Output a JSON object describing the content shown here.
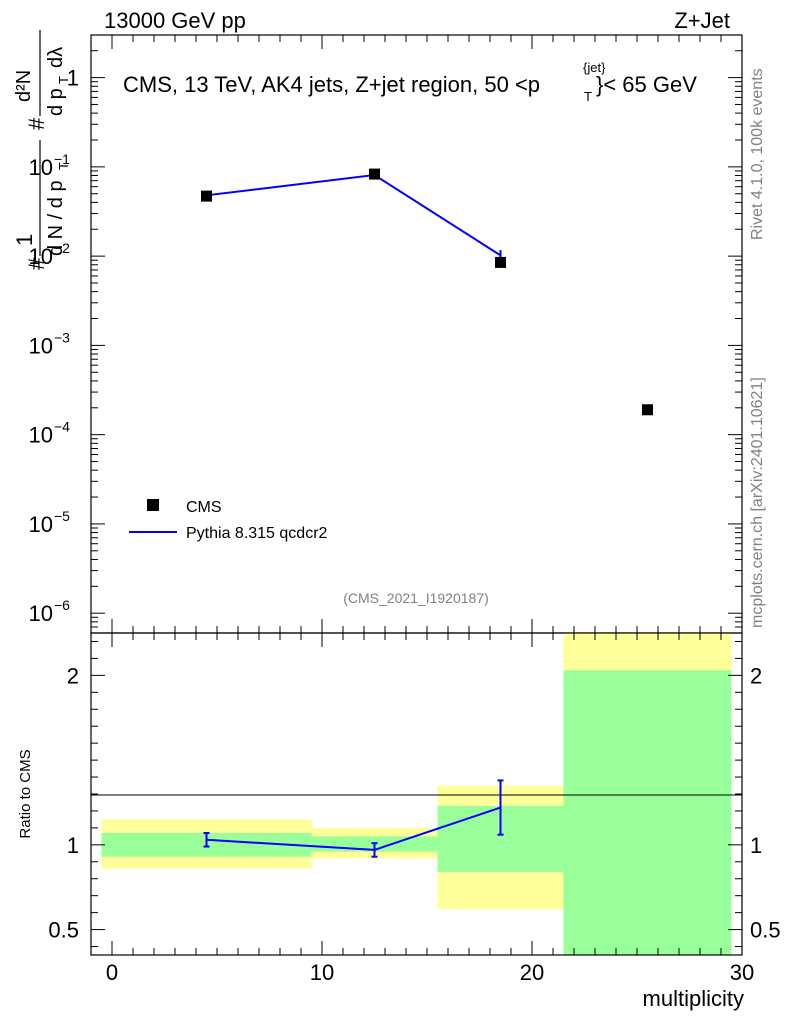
{
  "header": {
    "left": "13000 GeV pp",
    "right": "Z+Jet"
  },
  "side": {
    "rivet": "Rivet 4.1.0,  100k events",
    "mcplots": "mcplots.cern.ch [arXiv:2401.10621]"
  },
  "chart_data": [
    {
      "type": "scatter",
      "panel": "main",
      "title_parts": {
        "prefix": "CMS, 13 TeV, AK4 jets, Z+jet region, 50 <p",
        "sup": "{jet}",
        "sub": "T",
        "suffix": "}< 65 GeV"
      },
      "ylabel": "# 1 / dN / dp_T # d²N / dp_T dλ",
      "yscale": "log",
      "ylim": [
        6e-07,
        3.0
      ],
      "yticks": [
        {
          "v": 1,
          "base": "1",
          "exp": ""
        },
        {
          "v": 0.1,
          "base": "10",
          "exp": "−1"
        },
        {
          "v": 0.01,
          "base": "10",
          "exp": "−2"
        },
        {
          "v": 0.001,
          "base": "10",
          "exp": "−3"
        },
        {
          "v": 0.0001,
          "base": "10",
          "exp": "−4"
        },
        {
          "v": 1e-05,
          "base": "10",
          "exp": "−5"
        },
        {
          "v": 1e-06,
          "base": "10",
          "exp": "−6"
        }
      ],
      "xlim": [
        -1,
        30
      ],
      "legend": {
        "location": "bottom-left",
        "cms": "CMS",
        "pythia": "Pythia 8.315 qcdcr2"
      },
      "watermark": "(CMS_2021_I1920187)",
      "series": [
        {
          "name": "CMS",
          "marker": "square",
          "color": "#000000",
          "x": [
            4.5,
            12.5,
            18.5,
            25.5
          ],
          "y": [
            0.047,
            0.083,
            0.0085,
            0.00019
          ]
        },
        {
          "name": "Pythia 8.315 qcdcr2",
          "marker": "line",
          "color": "#0000ff",
          "x": [
            4.5,
            12.5,
            18.5
          ],
          "y": [
            0.048,
            0.081,
            0.0102
          ],
          "yerr": [
            0.002,
            0.003,
            0.0015
          ]
        }
      ]
    },
    {
      "type": "ratio",
      "panel": "ratio",
      "ylabel": "Ratio to CMS",
      "xlabel": "multiplicity",
      "ylim": [
        0.35,
        2.25
      ],
      "yticks": [
        "0.5",
        "1",
        "2"
      ],
      "xticks": [
        "0",
        "10",
        "20",
        "30"
      ],
      "xlim": [
        -1,
        30
      ],
      "bands": [
        {
          "x0": -0.5,
          "x1": 9.5,
          "green": [
            0.93,
            1.07
          ],
          "yellow": [
            0.86,
            1.15
          ]
        },
        {
          "x0": 9.5,
          "x1": 15.5,
          "green": [
            0.96,
            1.05
          ],
          "yellow": [
            0.92,
            1.1
          ]
        },
        {
          "x0": 15.5,
          "x1": 21.5,
          "green": [
            0.84,
            1.23
          ],
          "yellow": [
            0.62,
            1.35
          ]
        },
        {
          "x0": 21.5,
          "x1": 29.5,
          "green": [
            0.35,
            2.03
          ],
          "yellow": [
            0.35,
            2.25
          ]
        }
      ],
      "ratio_points": {
        "x": [
          4.5,
          12.5,
          18.5
        ],
        "y": [
          1.03,
          0.97,
          1.22
        ],
        "err": [
          0.04,
          0.04,
          0.16
        ]
      }
    }
  ]
}
